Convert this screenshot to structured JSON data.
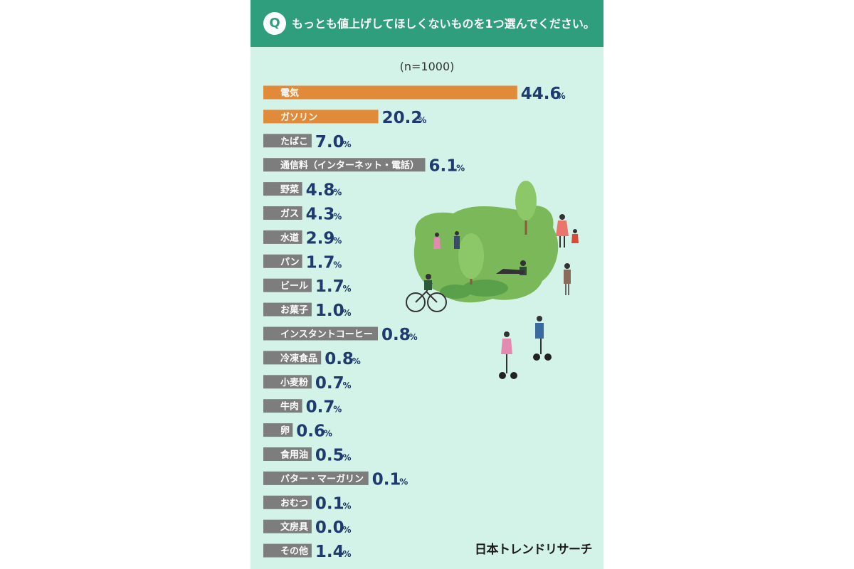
{
  "header": {
    "badge": "Q",
    "question": "もっとも値上げしてほしくないものを1つ選んでください。"
  },
  "sample_size": "(n=1000)",
  "brand": "日本トレンドリサーチ",
  "colors": {
    "header_bg": "#2f9e7c",
    "panel_bg": "#d3f3e8",
    "highlight_bar": "#e08a3a",
    "normal_bar": "#7d7d7d",
    "value_text": "#1e3a6e"
  },
  "chart_data": {
    "type": "bar",
    "orientation": "horizontal",
    "title": "",
    "xlabel": "",
    "ylabel": "",
    "unit": "%",
    "categories": [
      "電気",
      "ガソリン",
      "たばこ",
      "通信料（インターネット・電話）",
      "野菜",
      "ガス",
      "水道",
      "パン",
      "ビール",
      "お菓子",
      "インスタントコーヒー",
      "冷凍食品",
      "小麦粉",
      "牛肉",
      "卵",
      "食用油",
      "バター・マーガリン",
      "おむつ",
      "文房具",
      "その他"
    ],
    "values": [
      44.6,
      20.2,
      7.0,
      6.1,
      4.8,
      4.3,
      2.9,
      1.7,
      1.7,
      1.0,
      0.8,
      0.8,
      0.7,
      0.7,
      0.6,
      0.5,
      0.1,
      0.1,
      0.0,
      1.4
    ],
    "value_labels": [
      "44.6",
      "20.2",
      "7.0",
      "6.1",
      "4.8",
      "4.3",
      "2.9",
      "1.7",
      "1.7",
      "1.0",
      "0.8",
      "0.8",
      "0.7",
      "0.7",
      "0.6",
      "0.5",
      "0.1",
      "0.1",
      "0.0",
      "1.4"
    ],
    "highlighted": [
      0,
      1
    ]
  }
}
